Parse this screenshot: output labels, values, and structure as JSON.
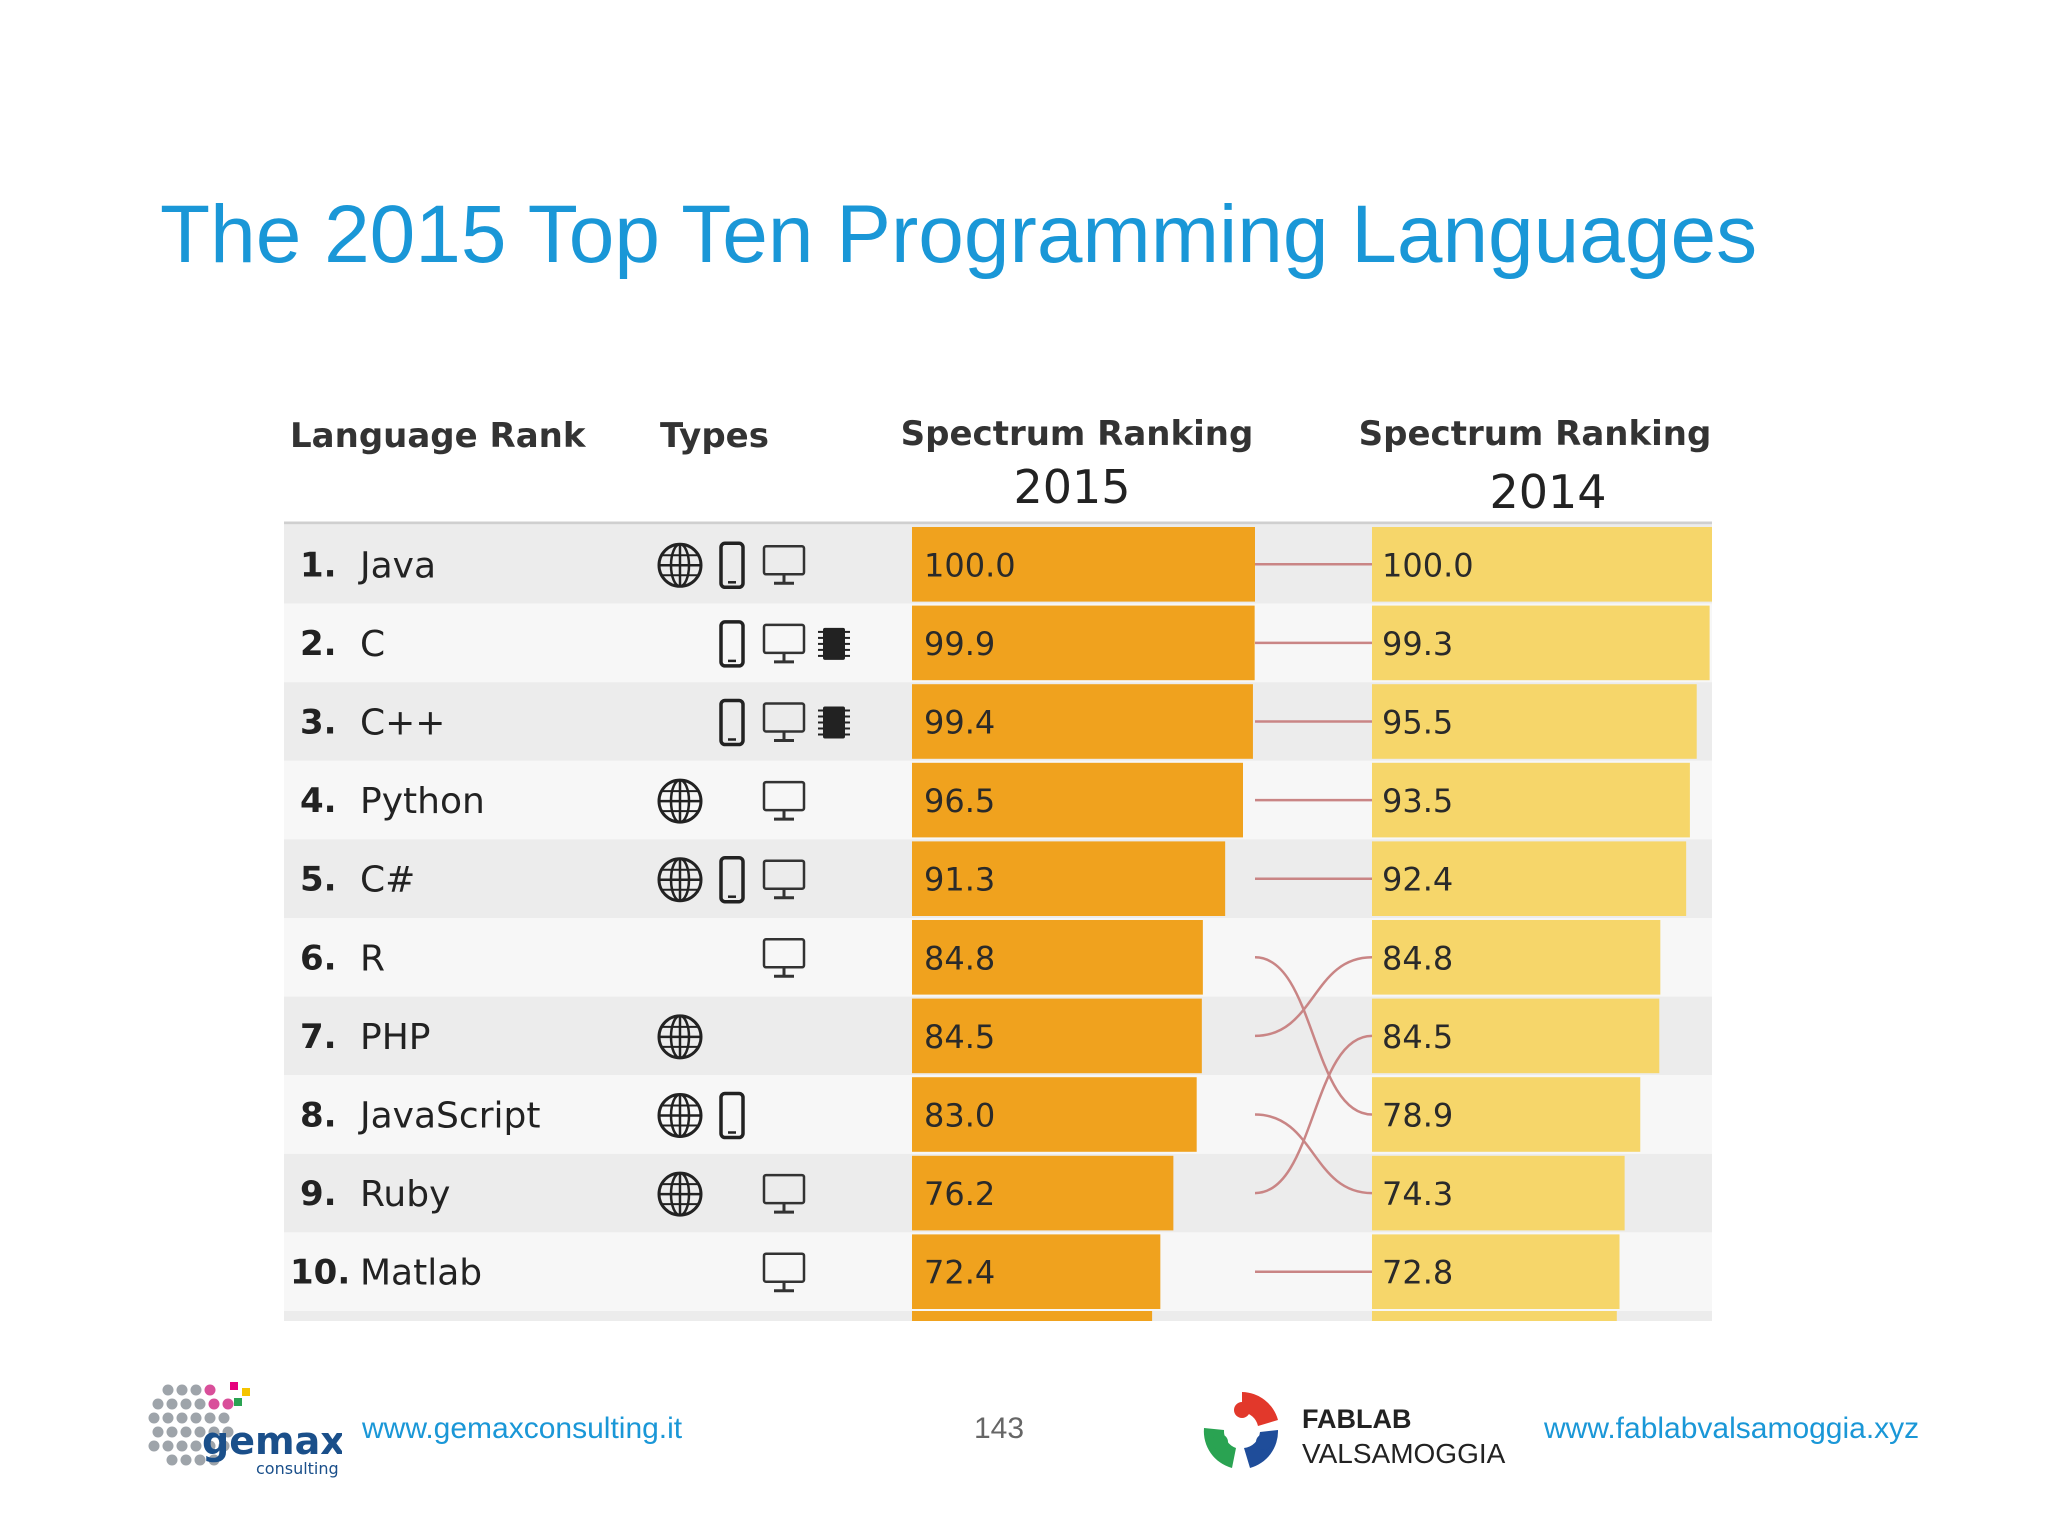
{
  "slide": {
    "title": "The 2015 Top Ten Programming Languages",
    "page_number": "143",
    "footer_left_url": "www.gemaxconsulting.it",
    "footer_right_url": "www.fablabvalsamoggia.xyz",
    "logo_left_name": "gemax",
    "logo_left_sub": "consulting",
    "logo_right_line1": "FABLAB",
    "logo_right_line2": "VALSAMOGGIA"
  },
  "colors": {
    "title": "#1a97d7",
    "bar_2015": "#f0a21e",
    "bar_2014": "#f6d66a",
    "connector": "#c98585",
    "row_odd": "#ececec",
    "row_even": "#f7f7f7"
  },
  "chart_data": {
    "type": "bar",
    "headers": {
      "rank": "Language Rank",
      "types": "Types",
      "spectrum_2015": "Spectrum Ranking",
      "year_2015": "2015",
      "spectrum_2014": "Spectrum Ranking",
      "year_2014": "2014"
    },
    "xlim": [
      0,
      100
    ],
    "rows": [
      {
        "rank": "1.",
        "language": "Java",
        "types": [
          "web-icon",
          "mobile-icon",
          "desktop-icon"
        ],
        "v2015": 100.0,
        "label2015": "100.0",
        "v2014": 100.0,
        "label2014": "100.0",
        "rank2014": 1
      },
      {
        "rank": "2.",
        "language": "C",
        "types": [
          "mobile-icon",
          "desktop-icon",
          "embedded-icon"
        ],
        "v2015": 99.9,
        "label2015": "99.9",
        "v2014": 99.3,
        "label2014": "99.3",
        "rank2014": 2
      },
      {
        "rank": "3.",
        "language": "C++",
        "types": [
          "mobile-icon",
          "desktop-icon",
          "embedded-icon"
        ],
        "v2015": 99.4,
        "label2015": "99.4",
        "v2014": 95.5,
        "label2014": "95.5",
        "rank2014": 3
      },
      {
        "rank": "4.",
        "language": "Python",
        "types": [
          "web-icon",
          "desktop-icon"
        ],
        "v2015": 96.5,
        "label2015": "96.5",
        "v2014": 93.5,
        "label2014": "93.5",
        "rank2014": 4
      },
      {
        "rank": "5.",
        "language": "C#",
        "types": [
          "web-icon",
          "mobile-icon",
          "desktop-icon"
        ],
        "v2015": 91.3,
        "label2015": "91.3",
        "v2014": 92.4,
        "label2014": "92.4",
        "rank2014": 5
      },
      {
        "rank": "6.",
        "language": "R",
        "types": [
          "desktop-icon"
        ],
        "v2015": 84.8,
        "label2015": "84.8",
        "v2014": 84.8,
        "label2014": "84.8",
        "rank2014": 8
      },
      {
        "rank": "7.",
        "language": "PHP",
        "types": [
          "web-icon"
        ],
        "v2015": 84.5,
        "label2015": "84.5",
        "v2014": 84.5,
        "label2014": "84.5",
        "rank2014": 6
      },
      {
        "rank": "8.",
        "language": "JavaScript",
        "types": [
          "web-icon",
          "mobile-icon"
        ],
        "v2015": 83.0,
        "label2015": "83.0",
        "v2014": 78.9,
        "label2014": "78.9",
        "rank2014": 9
      },
      {
        "rank": "9.",
        "language": "Ruby",
        "types": [
          "web-icon",
          "desktop-icon"
        ],
        "v2015": 76.2,
        "label2015": "76.2",
        "v2014": 74.3,
        "label2014": "74.3",
        "rank2014": 7
      },
      {
        "rank": "10.",
        "language": "Matlab",
        "types": [
          "desktop-icon"
        ],
        "v2015": 72.4,
        "label2015": "72.4",
        "v2014": 72.8,
        "label2014": "72.8",
        "rank2014": 10
      }
    ],
    "values_2014_column": [
      100.0,
      99.3,
      95.5,
      93.5,
      92.4,
      84.8,
      84.5,
      78.9,
      74.3,
      72.8
    ]
  }
}
